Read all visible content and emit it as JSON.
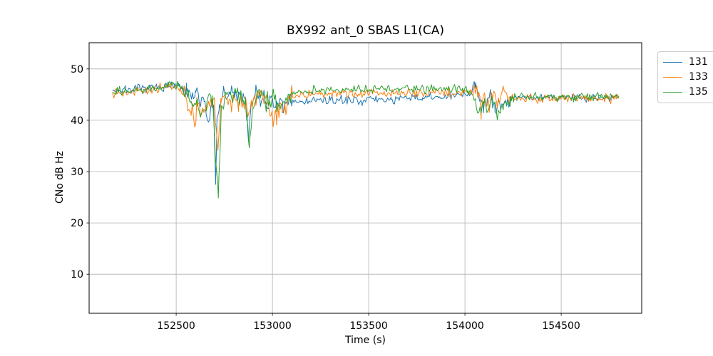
{
  "chart_data": {
    "type": "line",
    "title": "BX992 ant_0 SBAS L1(CA)",
    "xlabel": "Time (s)",
    "ylabel": "CNo dB Hz",
    "xlim": [
      152048,
      154918
    ],
    "ylim": [
      2.4,
      55.1
    ],
    "x_ticks": [
      152500,
      153000,
      153500,
      154000,
      154500
    ],
    "y_ticks": [
      10,
      20,
      30,
      40,
      50
    ],
    "grid": true,
    "grid_color": "#b0b0b0",
    "spine_color": "#000000",
    "legend_position": "outside-upper-right",
    "noise": {
      "default_sd": 0.42,
      "step_s": 6,
      "zones": [
        {
          "from": 152540,
          "to": 153100,
          "sd": 0.95
        },
        {
          "from": 154045,
          "to": 154235,
          "sd": 0.85
        }
      ]
    },
    "series": [
      {
        "name": "131",
        "color": "#1f77b4",
        "seed": 7,
        "anchors": [
          [
            152170,
            45.8
          ],
          [
            152240,
            45.9
          ],
          [
            152320,
            46.1
          ],
          [
            152400,
            46.3
          ],
          [
            152460,
            46.8
          ],
          [
            152520,
            46.4
          ],
          [
            152555,
            45.2
          ],
          [
            152580,
            44.2
          ],
          [
            152600,
            45.3
          ],
          [
            152620,
            43.6
          ],
          [
            152645,
            44.2
          ],
          [
            152668,
            39.5
          ],
          [
            152680,
            42.5
          ],
          [
            152695,
            43.0
          ],
          [
            152705,
            28.0
          ],
          [
            152712,
            40.0
          ],
          [
            152725,
            43.0
          ],
          [
            152745,
            45.3
          ],
          [
            152765,
            44.2
          ],
          [
            152785,
            45.8
          ],
          [
            152805,
            44.6
          ],
          [
            152825,
            45.2
          ],
          [
            152845,
            44.0
          ],
          [
            152862,
            43.2
          ],
          [
            152876,
            35.8
          ],
          [
            152890,
            43.6
          ],
          [
            152910,
            45.2
          ],
          [
            152935,
            44.2
          ],
          [
            152960,
            44.6
          ],
          [
            152985,
            43.4
          ],
          [
            153005,
            42.6
          ],
          [
            153030,
            43.2
          ],
          [
            153055,
            41.9
          ],
          [
            153080,
            43.0
          ],
          [
            153105,
            43.8
          ],
          [
            153160,
            43.6
          ],
          [
            153220,
            43.9
          ],
          [
            153300,
            43.8
          ],
          [
            153380,
            44.0
          ],
          [
            153460,
            43.9
          ],
          [
            153540,
            44.1
          ],
          [
            153620,
            44.0
          ],
          [
            153700,
            44.2
          ],
          [
            153780,
            44.4
          ],
          [
            153860,
            44.5
          ],
          [
            153930,
            44.6
          ],
          [
            153990,
            45.0
          ],
          [
            154030,
            45.3
          ],
          [
            154055,
            47.6
          ],
          [
            154075,
            43.8
          ],
          [
            154095,
            42.6
          ],
          [
            154115,
            43.6
          ],
          [
            154135,
            44.4
          ],
          [
            154155,
            43.0
          ],
          [
            154175,
            44.0
          ],
          [
            154192,
            42.6
          ],
          [
            154212,
            44.0
          ],
          [
            154235,
            44.5
          ],
          [
            154320,
            44.5
          ],
          [
            154420,
            44.4
          ],
          [
            154520,
            44.5
          ],
          [
            154620,
            44.4
          ],
          [
            154720,
            44.5
          ],
          [
            154800,
            44.5
          ]
        ]
      },
      {
        "name": "133",
        "color": "#ff7f0e",
        "seed": 13,
        "anchors": [
          [
            152170,
            45.5
          ],
          [
            152240,
            45.6
          ],
          [
            152320,
            45.7
          ],
          [
            152400,
            46.0
          ],
          [
            152460,
            46.6
          ],
          [
            152520,
            46.2
          ],
          [
            152550,
            44.5
          ],
          [
            152575,
            42.0
          ],
          [
            152596,
            39.2
          ],
          [
            152610,
            42.8
          ],
          [
            152632,
            41.3
          ],
          [
            152655,
            42.6
          ],
          [
            152680,
            43.8
          ],
          [
            152700,
            43.5
          ],
          [
            152717,
            34.0
          ],
          [
            152732,
            43.6
          ],
          [
            152755,
            45.0
          ],
          [
            152780,
            43.6
          ],
          [
            152800,
            44.6
          ],
          [
            152825,
            43.4
          ],
          [
            152850,
            43.0
          ],
          [
            152878,
            41.3
          ],
          [
            152900,
            44.0
          ],
          [
            152925,
            45.4
          ],
          [
            152950,
            44.6
          ],
          [
            152975,
            43.2
          ],
          [
            153000,
            41.2
          ],
          [
            153020,
            40.8
          ],
          [
            153040,
            43.4
          ],
          [
            153062,
            41.6
          ],
          [
            153085,
            44.4
          ],
          [
            153130,
            44.9
          ],
          [
            153200,
            45.1
          ],
          [
            153280,
            45.0
          ],
          [
            153360,
            45.2
          ],
          [
            153440,
            45.1
          ],
          [
            153520,
            45.3
          ],
          [
            153600,
            45.2
          ],
          [
            153680,
            45.4
          ],
          [
            153760,
            45.3
          ],
          [
            153840,
            45.4
          ],
          [
            153920,
            45.3
          ],
          [
            153990,
            45.4
          ],
          [
            154035,
            45.6
          ],
          [
            154062,
            46.4
          ],
          [
            154085,
            42.2
          ],
          [
            154105,
            44.0
          ],
          [
            154125,
            42.6
          ],
          [
            154145,
            45.3
          ],
          [
            154165,
            43.2
          ],
          [
            154185,
            44.5
          ],
          [
            154205,
            46.2
          ],
          [
            154230,
            44.4
          ],
          [
            154320,
            44.3
          ],
          [
            154420,
            44.2
          ],
          [
            154520,
            44.3
          ],
          [
            154620,
            44.2
          ],
          [
            154720,
            44.3
          ],
          [
            154800,
            44.2
          ]
        ]
      },
      {
        "name": "135",
        "color": "#2ca02c",
        "seed": 29,
        "anchors": [
          [
            152170,
            45.7
          ],
          [
            152240,
            45.8
          ],
          [
            152320,
            45.9
          ],
          [
            152400,
            46.2
          ],
          [
            152460,
            46.9
          ],
          [
            152530,
            46.4
          ],
          [
            152565,
            44.8
          ],
          [
            152588,
            42.6
          ],
          [
            152610,
            44.0
          ],
          [
            152635,
            41.5
          ],
          [
            152660,
            43.4
          ],
          [
            152688,
            44.6
          ],
          [
            152706,
            32.0
          ],
          [
            152719,
            25.0
          ],
          [
            152736,
            43.2
          ],
          [
            152760,
            45.7
          ],
          [
            152788,
            44.0
          ],
          [
            152815,
            45.4
          ],
          [
            152842,
            43.6
          ],
          [
            152862,
            42.2
          ],
          [
            152880,
            34.8
          ],
          [
            152896,
            42.6
          ],
          [
            152922,
            45.9
          ],
          [
            152950,
            44.6
          ],
          [
            152980,
            43.2
          ],
          [
            153010,
            44.1
          ],
          [
            153042,
            42.6
          ],
          [
            153072,
            44.2
          ],
          [
            153110,
            45.4
          ],
          [
            153180,
            45.7
          ],
          [
            153260,
            45.9
          ],
          [
            153340,
            45.8
          ],
          [
            153420,
            46.0
          ],
          [
            153500,
            45.9
          ],
          [
            153580,
            46.1
          ],
          [
            153660,
            46.0
          ],
          [
            153740,
            46.1
          ],
          [
            153820,
            46.2
          ],
          [
            153900,
            46.0
          ],
          [
            153960,
            46.2
          ],
          [
            154015,
            45.6
          ],
          [
            154048,
            44.0
          ],
          [
            154075,
            41.6
          ],
          [
            154098,
            43.0
          ],
          [
            154120,
            41.8
          ],
          [
            154140,
            44.4
          ],
          [
            154162,
            42.2
          ],
          [
            154185,
            41.2
          ],
          [
            154210,
            43.6
          ],
          [
            154238,
            44.6
          ],
          [
            154330,
            44.6
          ],
          [
            154430,
            44.5
          ],
          [
            154530,
            44.6
          ],
          [
            154630,
            44.5
          ],
          [
            154730,
            44.6
          ],
          [
            154800,
            44.5
          ]
        ]
      }
    ]
  }
}
